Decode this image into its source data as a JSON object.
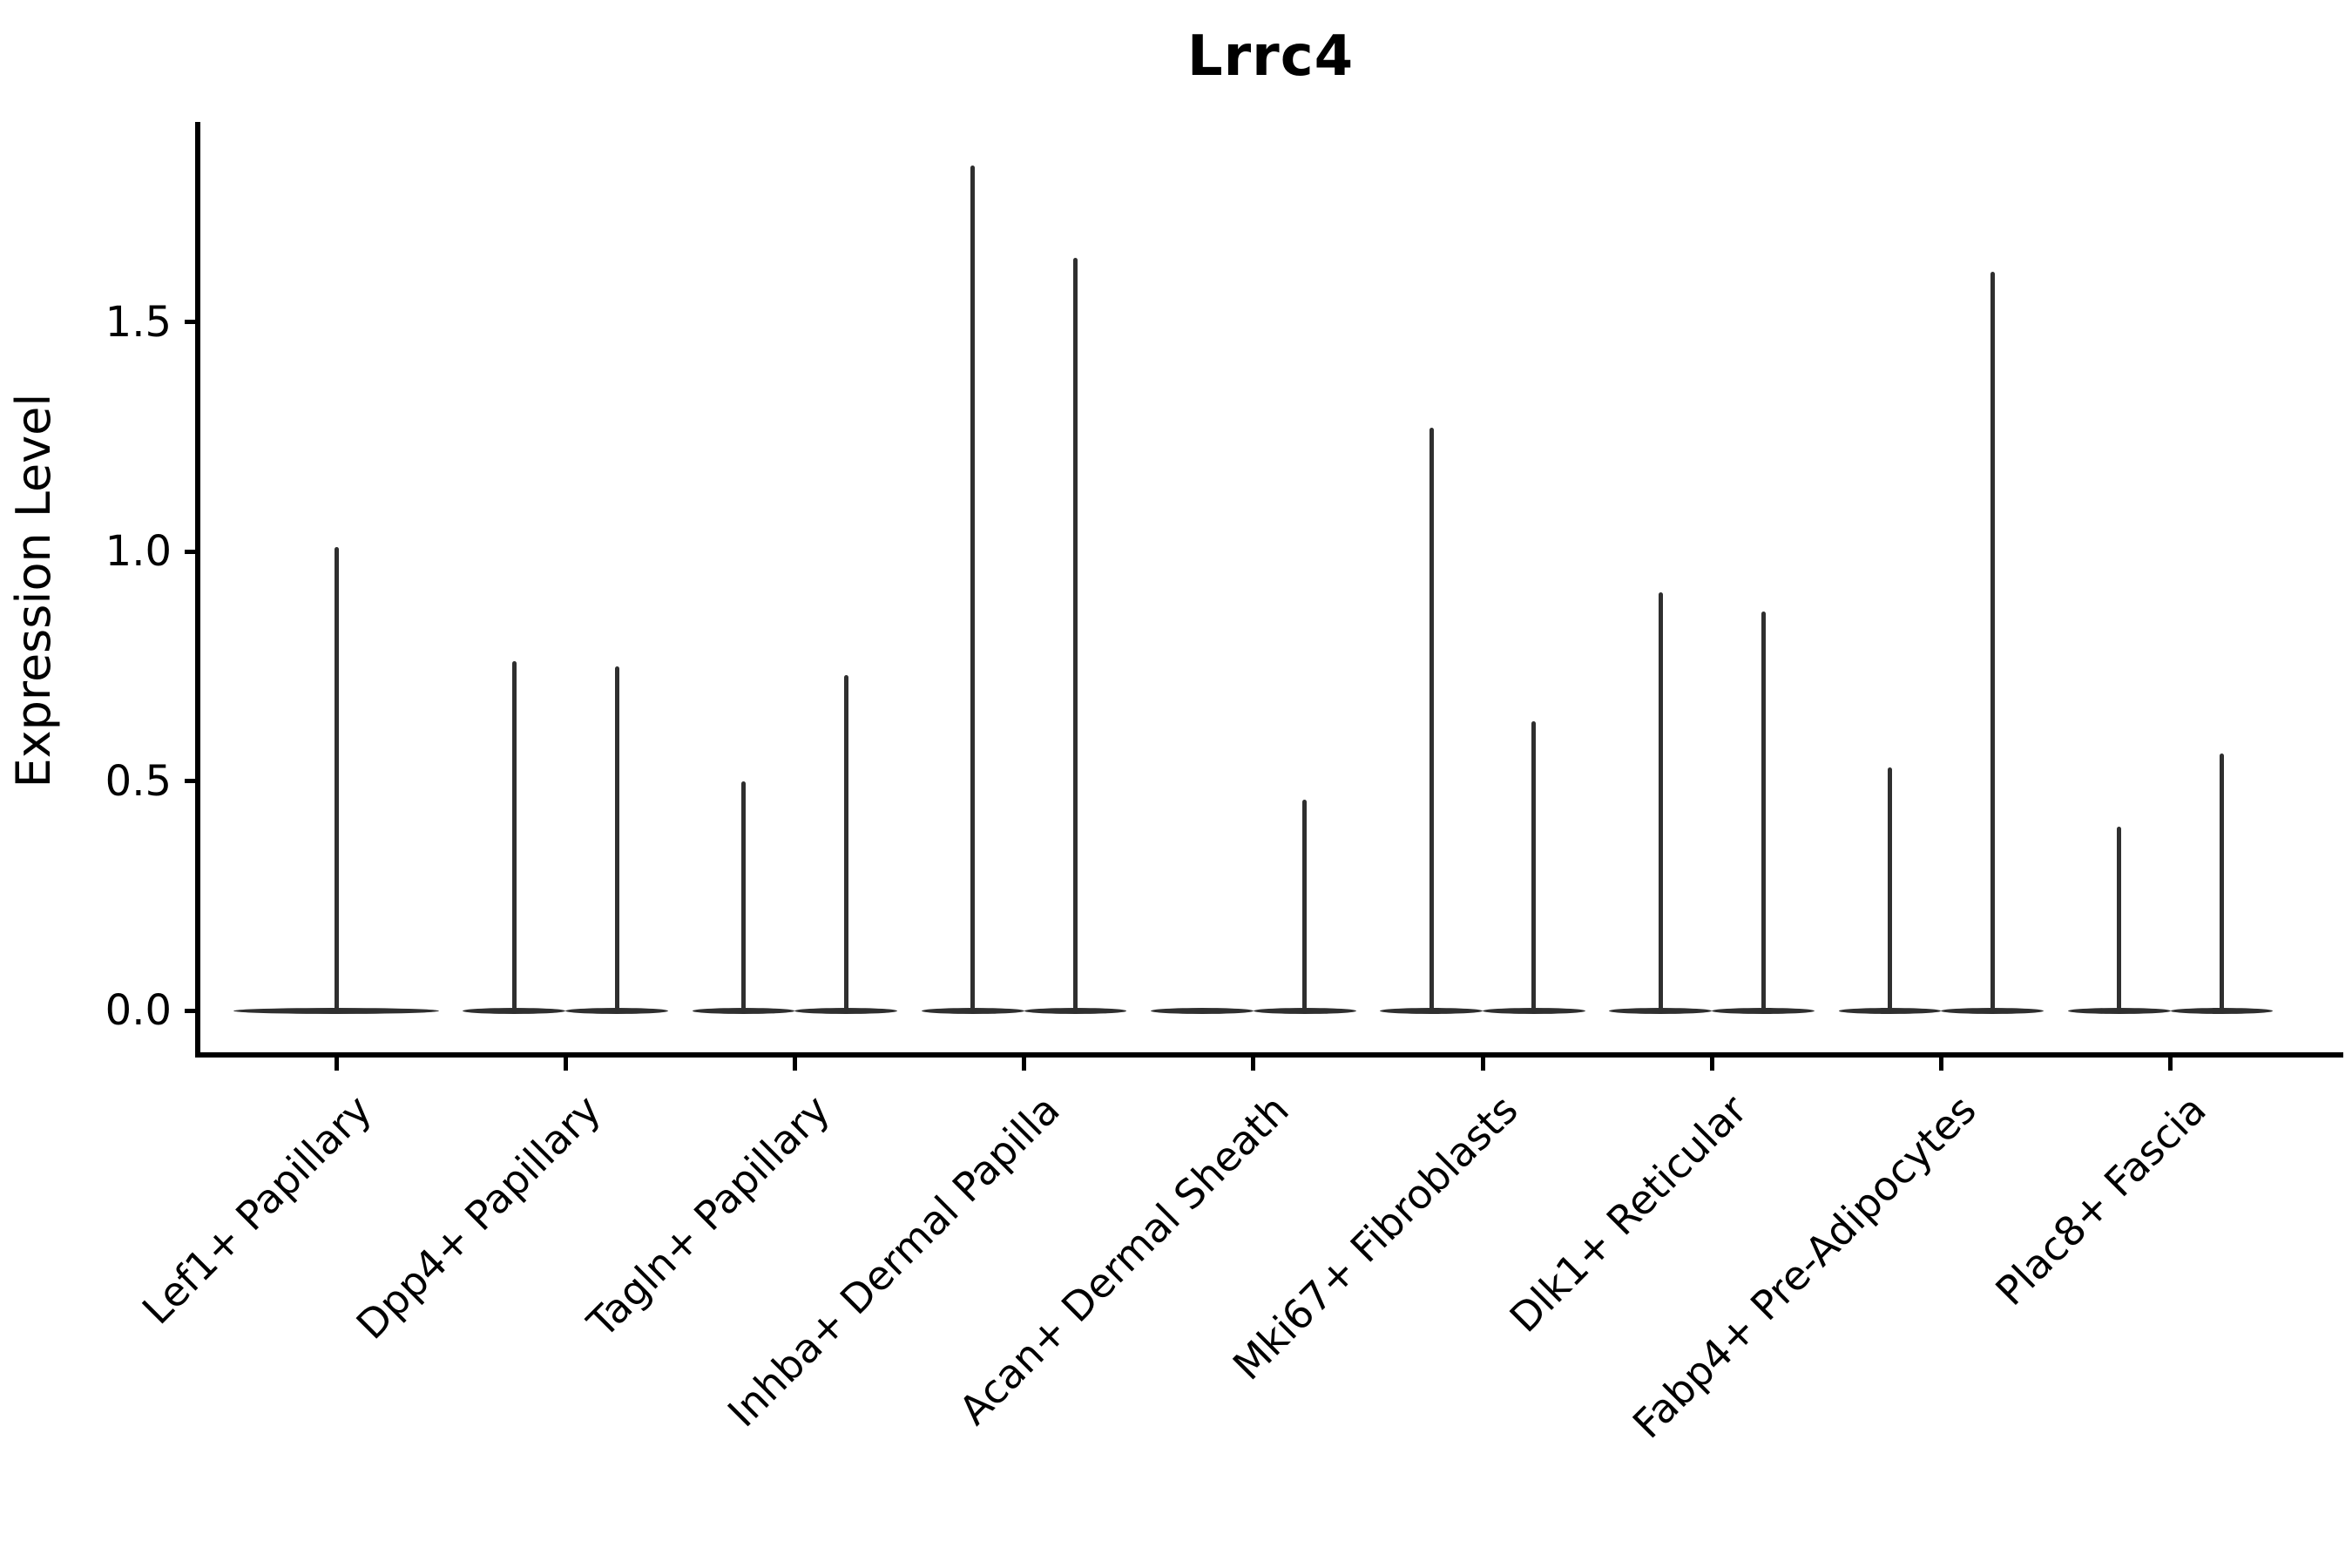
{
  "title": "Lrrc4",
  "chart_data": {
    "type": "violin",
    "title": "Lrrc4",
    "xlabel": "",
    "ylabel": "Expression Level",
    "ytick_labels": [
      "0.0",
      "0.5",
      "1.0",
      "1.5"
    ],
    "ytick_values": [
      0.0,
      0.5,
      1.0,
      1.5
    ],
    "ylim": [
      -0.1,
      1.94
    ],
    "grid": false,
    "legend_position": "none",
    "violin_line_color": "#2f2f2f",
    "axis_color": "#000000",
    "categories": [
      "Lef1+ Papillary",
      "Dpp4+ Papillary",
      "Tagln+ Papillary",
      "Inhba+ Dermal Papilla",
      "Acan+ Dermal Sheath",
      "Mki67+ Fibroblasts",
      "Dlk1+ Reticular",
      "Fabp4+ Pre-Adipocytes",
      "Plac8+ Fascia"
    ],
    "series": [
      {
        "category": "Lef1+ Papillary",
        "violins": [
          {
            "offset": 0.0,
            "width": 0.9,
            "max": 1.01
          }
        ]
      },
      {
        "category": "Dpp4+ Papillary",
        "violins": [
          {
            "offset": -0.225,
            "width": 0.45,
            "max": 0.76
          },
          {
            "offset": 0.225,
            "width": 0.45,
            "max": 0.75
          }
        ]
      },
      {
        "category": "Tagln+ Papillary",
        "violins": [
          {
            "offset": -0.225,
            "width": 0.45,
            "max": 0.5
          },
          {
            "offset": 0.225,
            "width": 0.45,
            "max": 0.73
          }
        ]
      },
      {
        "category": "Inhba+ Dermal Papilla",
        "violins": [
          {
            "offset": -0.225,
            "width": 0.45,
            "max": 1.84
          },
          {
            "offset": 0.225,
            "width": 0.45,
            "max": 1.64
          }
        ]
      },
      {
        "category": "Acan+ Dermal Sheath",
        "violins": [
          {
            "offset": -0.225,
            "width": 0.45,
            "max": 0.0
          },
          {
            "offset": 0.225,
            "width": 0.45,
            "max": 0.46
          }
        ]
      },
      {
        "category": "Mki67+ Fibroblasts",
        "violins": [
          {
            "offset": -0.225,
            "width": 0.45,
            "max": 1.27
          },
          {
            "offset": 0.225,
            "width": 0.45,
            "max": 0.63
          }
        ]
      },
      {
        "category": "Dlk1+ Reticular",
        "violins": [
          {
            "offset": -0.225,
            "width": 0.45,
            "max": 0.91
          },
          {
            "offset": 0.225,
            "width": 0.45,
            "max": 0.87
          }
        ]
      },
      {
        "category": "Fabp4+ Pre-Adipocytes",
        "violins": [
          {
            "offset": -0.225,
            "width": 0.45,
            "max": 0.53
          },
          {
            "offset": 0.225,
            "width": 0.45,
            "max": 1.61
          }
        ]
      },
      {
        "category": "Plac8+ Fascia",
        "violins": [
          {
            "offset": -0.225,
            "width": 0.45,
            "max": 0.4
          },
          {
            "offset": 0.225,
            "width": 0.45,
            "max": 0.56
          }
        ]
      }
    ]
  },
  "y_axis": {
    "label": "Expression Level",
    "tick_labels": [
      "0.0",
      "0.5",
      "1.0",
      "1.5"
    ]
  },
  "x_axis": {
    "labels": [
      "Lef1+ Papillary",
      "Dpp4+ Papillary",
      "Tagln+ Papillary",
      "Inhba+ Dermal Papilla",
      "Acan+ Dermal Sheath",
      "Mki67+ Fibroblasts",
      "Dlk1+ Reticular",
      "Fabp4+ Pre-Adipocytes",
      "Plac8+ Fascia"
    ]
  }
}
